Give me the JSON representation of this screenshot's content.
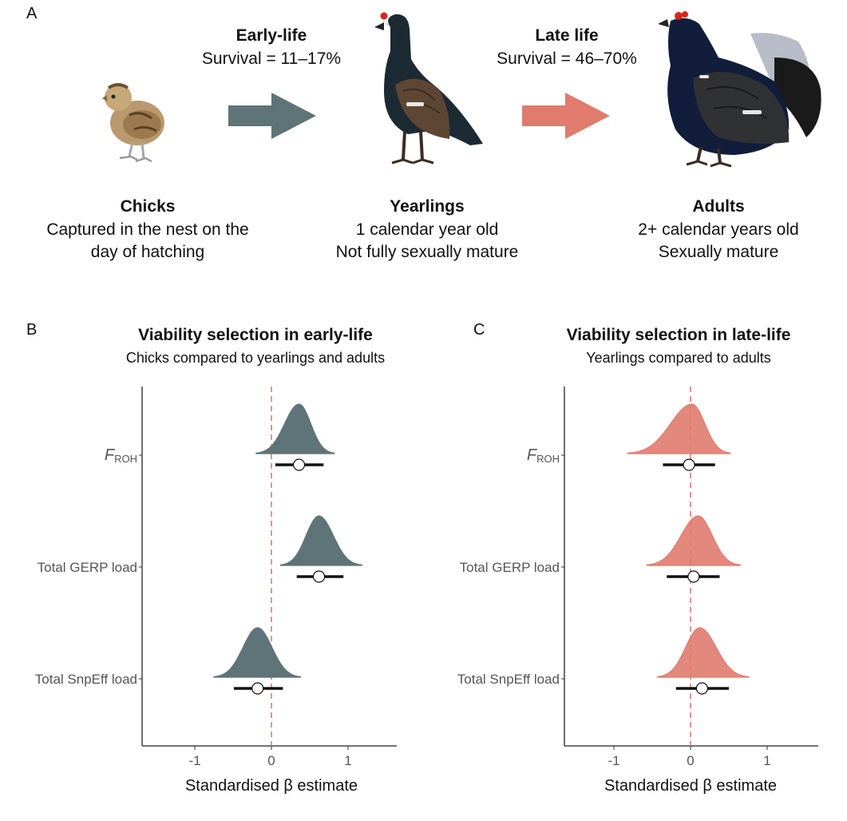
{
  "panels": {
    "a": "A",
    "b": "B",
    "c": "C"
  },
  "transitions": [
    {
      "title": "Early-life",
      "survival": "Survival = 11–17%",
      "color": "#5f7479"
    },
    {
      "title": "Late life",
      "survival": "Survival = 46–70%",
      "color": "#e07b6e"
    }
  ],
  "stages": [
    {
      "name": "Chicks",
      "line1": "Captured in the nest on the",
      "line2": "day of hatching"
    },
    {
      "name": "Yearlings",
      "line1": "1 calendar year old",
      "line2": "Not fully sexually mature"
    },
    {
      "name": "Adults",
      "line1": "2+ calendar years old",
      "line2": "Sexually mature"
    }
  ],
  "chart_data": [
    {
      "type": "scatter",
      "title": "Viability selection in early-life",
      "subtitle": "Chicks compared to yearlings and adults",
      "xlabel": "Standardised β estimate",
      "xlim": [
        -1.6,
        1.65
      ],
      "xticks": [
        -1,
        0,
        1
      ],
      "xtick_labels": [
        "-1",
        "0",
        "1"
      ],
      "color": "#5f7479",
      "reference_line": 0,
      "categories": [
        "FROH",
        "Total GERP load",
        "Total SnpEff load"
      ],
      "category_labels": [
        {
          "main": "F",
          "sub": "ROH"
        },
        {
          "main": "Total GERP load",
          "sub": ""
        },
        {
          "main": "Total SnpEff load",
          "sub": ""
        }
      ],
      "estimates": [
        0.36,
        0.62,
        -0.18
      ],
      "ci_lower": [
        0.05,
        0.33,
        -0.49
      ],
      "ci_upper": [
        0.68,
        0.94,
        0.15
      ],
      "density_range": [
        [
          -0.2,
          0.82
        ],
        [
          0.12,
          1.18
        ],
        [
          -0.75,
          0.38
        ]
      ],
      "density_mode": [
        0.36,
        0.62,
        -0.18
      ]
    },
    {
      "type": "scatter",
      "title": "Viability selection in late-life",
      "subtitle": "Yearlings compared to adults",
      "xlabel": "Standardised β estimate",
      "xlim": [
        -1.6,
        1.65
      ],
      "xticks": [
        -1,
        0,
        1
      ],
      "xtick_labels": [
        "-1",
        "0",
        "1"
      ],
      "color": "#e07b6e",
      "reference_line": 0,
      "categories": [
        "FROH",
        "Total GERP load",
        "Total SnpEff load"
      ],
      "category_labels": [
        {
          "main": "F",
          "sub": "ROH"
        },
        {
          "main": "Total GERP load",
          "sub": ""
        },
        {
          "main": "Total SnpEff load",
          "sub": ""
        }
      ],
      "estimates": [
        -0.02,
        0.04,
        0.15
      ],
      "ci_lower": [
        -0.36,
        -0.31,
        -0.19
      ],
      "ci_upper": [
        0.32,
        0.38,
        0.5
      ],
      "density_range": [
        [
          -0.82,
          0.52
        ],
        [
          -0.57,
          0.65
        ],
        [
          -0.43,
          0.76
        ]
      ],
      "density_mode": [
        0.02,
        0.1,
        0.12
      ]
    }
  ]
}
